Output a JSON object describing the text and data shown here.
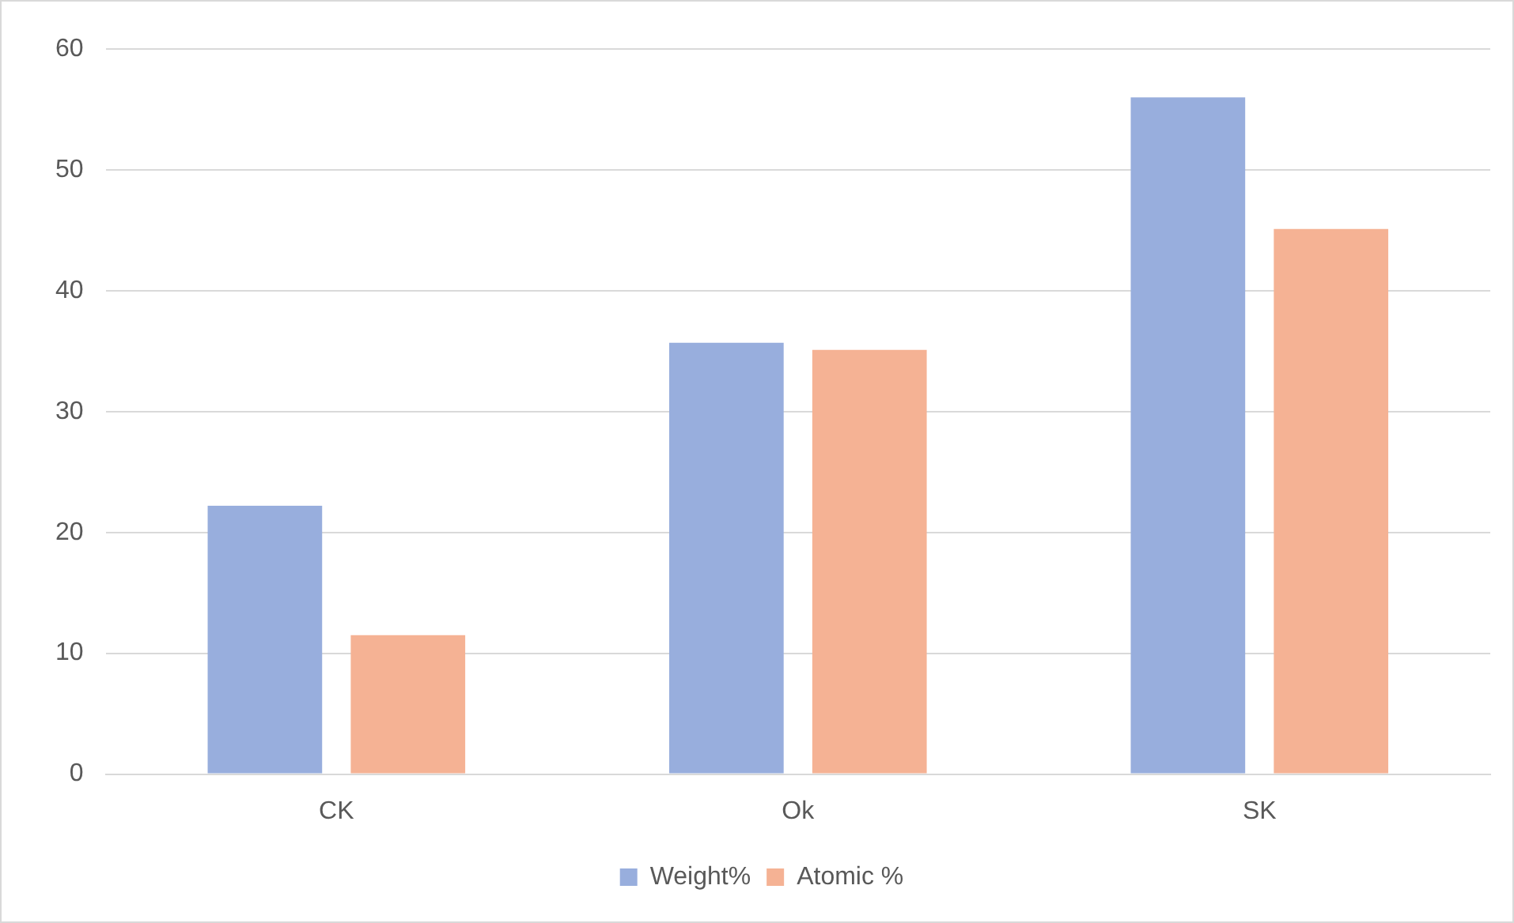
{
  "chart_data": {
    "type": "bar",
    "categories": [
      "CK",
      "Ok",
      "SK"
    ],
    "series": [
      {
        "name": "Weight%",
        "color": "#98aedd",
        "values": [
          22.2,
          35.7,
          56.0
        ]
      },
      {
        "name": "Atomic %",
        "color": "#f5b294",
        "values": [
          11.5,
          35.1,
          45.1
        ]
      }
    ],
    "ylim": [
      0,
      60
    ],
    "yticks": [
      0,
      10,
      20,
      30,
      40,
      50,
      60
    ],
    "grid": "y",
    "legend": "bottom"
  }
}
